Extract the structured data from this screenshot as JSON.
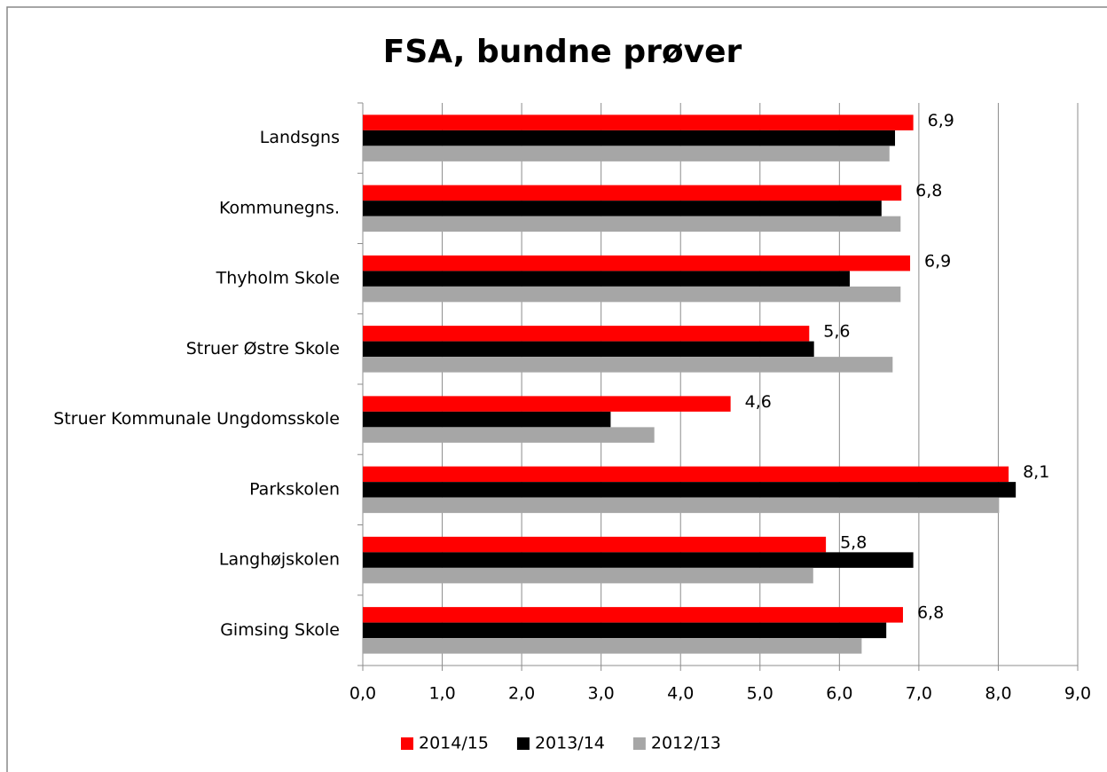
{
  "chart_data": {
    "type": "barh",
    "title": "FSA, bundne prøver",
    "categories": [
      "Landsgns",
      "Kommunegns.",
      "Thyholm Skole",
      "Struer Østre Skole",
      "Struer Kommunale Ungdomsskole",
      "Parkskolen",
      "Langhøjskolen",
      "Gimsing Skole"
    ],
    "series": [
      {
        "name": "2014/15",
        "color": "#ff0000",
        "values": [
          6.93,
          6.78,
          6.89,
          5.62,
          4.63,
          8.13,
          5.83,
          6.8
        ],
        "value_labels": [
          "6,9",
          "6,8",
          "6,9",
          "5,6",
          "4,6",
          "8,1",
          "5,8",
          "6,8"
        ]
      },
      {
        "name": "2013/14",
        "color": "#000000",
        "values": [
          6.7,
          6.53,
          6.13,
          5.68,
          3.12,
          8.22,
          6.93,
          6.59
        ]
      },
      {
        "name": "2012/13",
        "color": "#a6a6a6",
        "values": [
          6.63,
          6.77,
          6.77,
          6.67,
          3.67,
          8.01,
          5.67,
          6.28
        ]
      }
    ],
    "xlim": [
      0,
      9
    ],
    "xticks": [
      {
        "value": 0,
        "label": "0,0"
      },
      {
        "value": 1,
        "label": "1,0"
      },
      {
        "value": 2,
        "label": "2,0"
      },
      {
        "value": 3,
        "label": "3,0"
      },
      {
        "value": 4,
        "label": "4,0"
      },
      {
        "value": 5,
        "label": "5,0"
      },
      {
        "value": 6,
        "label": "6,0"
      },
      {
        "value": 7,
        "label": "7,0"
      },
      {
        "value": 8,
        "label": "8,0"
      },
      {
        "value": 9,
        "label": "9,0"
      }
    ],
    "grid": true,
    "legend": "bottom"
  }
}
